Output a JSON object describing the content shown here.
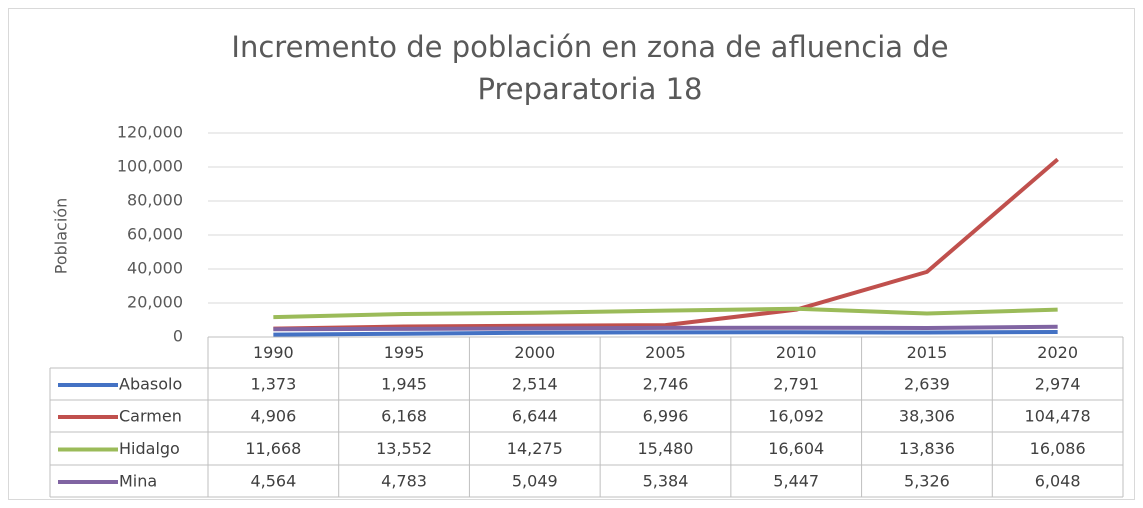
{
  "chart_data": {
    "type": "line",
    "title": "Incremento de población en zona de afluencia de Preparatoria 18",
    "y_label": "Población",
    "categories": [
      "1990",
      "1995",
      "2000",
      "2005",
      "2010",
      "2015",
      "2020"
    ],
    "series": [
      {
        "name": "Abasolo",
        "color": "#4472c4",
        "values": [
          1373,
          1945,
          2514,
          2746,
          2791,
          2639,
          2974
        ],
        "value_labels": [
          "1,373",
          "1,945",
          "2,514",
          "2,746",
          "2,791",
          "2,639",
          "2,974"
        ]
      },
      {
        "name": "Carmen",
        "color": "#c0504d",
        "values": [
          4906,
          6168,
          6644,
          6996,
          16092,
          38306,
          104478
        ],
        "value_labels": [
          "4,906",
          "6,168",
          "6,644",
          "6,996",
          "16,092",
          "38,306",
          "104,478"
        ]
      },
      {
        "name": "Hidalgo",
        "color": "#9bbb59",
        "values": [
          11668,
          13552,
          14275,
          15480,
          16604,
          13836,
          16086
        ],
        "value_labels": [
          "11,668",
          "13,552",
          "14,275",
          "15,480",
          "16,604",
          "13,836",
          "16,086"
        ]
      },
      {
        "name": "Mina",
        "color": "#8064a2",
        "values": [
          4564,
          4783,
          5049,
          5384,
          5447,
          5326,
          6048
        ],
        "value_labels": [
          "4,564",
          "4,783",
          "5,049",
          "5,384",
          "5,447",
          "5,326",
          "6,048"
        ]
      }
    ],
    "ylim": [
      0,
      120000
    ],
    "yticks": [
      0,
      {
        "value": 20000,
        "label": "20,000"
      },
      {
        "value": 40000,
        "label": "40,000"
      },
      {
        "value": 60000,
        "label": "60,000"
      },
      {
        "value": 80000,
        "label": "80,000"
      },
      {
        "value": 100000,
        "label": "100,000"
      },
      {
        "value": 120000,
        "label": "120,000"
      }
    ],
    "grid": true
  }
}
